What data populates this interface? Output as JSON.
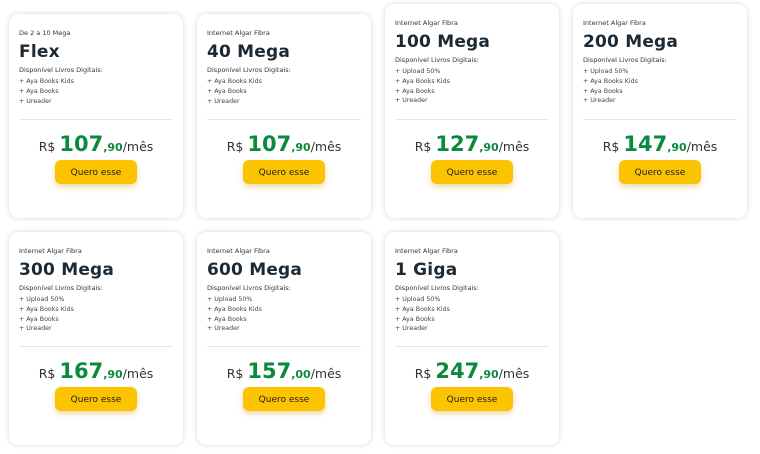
{
  "colors": {
    "accent_green": "#0b8a3d",
    "button_yellow": "#fcc400"
  },
  "plans": [
    {
      "subtitle": "De 2 a 10 Mega",
      "title": "Flex",
      "available_label": "Disponível Livros Digitais:",
      "items": [
        "+ Aya Books Kids",
        "+ Aya Books",
        "+ Ureader"
      ],
      "currency": "R$",
      "price_int": "107",
      "price_cents": ",90",
      "period": "/mês",
      "button": "Quero esse"
    },
    {
      "subtitle": "Internet Algar Fibra",
      "title": "40 Mega",
      "available_label": "Disponível Livros Digitais:",
      "items": [
        "+ Aya Books Kids",
        "+ Aya Books",
        "+ Ureader"
      ],
      "currency": "R$",
      "price_int": "107",
      "price_cents": ",90",
      "period": "/mês",
      "button": "Quero esse"
    },
    {
      "subtitle": "Internet Algar Fibra",
      "title": "100 Mega",
      "available_label": "Disponível Livros Digitais:",
      "items": [
        "+ Upload 50%",
        "+ Aya Books Kids",
        "+ Aya Books",
        "+ Ureader"
      ],
      "currency": "R$",
      "price_int": "127",
      "price_cents": ",90",
      "period": "/mês",
      "button": "Quero esse"
    },
    {
      "subtitle": "Internet Algar Fibra",
      "title": "200 Mega",
      "available_label": "Disponível Livros Digitais:",
      "items": [
        "+ Upload 50%",
        "+ Aya Books Kids",
        "+ Aya Books",
        "+ Ureader"
      ],
      "currency": "R$",
      "price_int": "147",
      "price_cents": ",90",
      "period": "/mês",
      "button": "Quero esse"
    },
    {
      "subtitle": "Internet Algar Fibra",
      "title": "300 Mega",
      "available_label": "Disponível Livros Digitais:",
      "items": [
        "+ Upload 50%",
        "+ Aya Books Kids",
        "+ Aya Books",
        "+ Ureader"
      ],
      "currency": "R$",
      "price_int": "167",
      "price_cents": ",90",
      "period": "/mês",
      "button": "Quero esse"
    },
    {
      "subtitle": "Internet Algar Fibra",
      "title": "600 Mega",
      "available_label": "Disponível Livros Digitais:",
      "items": [
        "+ Upload 50%",
        "+ Aya Books Kids",
        "+ Aya Books",
        "+ Ureader"
      ],
      "currency": "R$",
      "price_int": "157",
      "price_cents": ",00",
      "period": "/mês",
      "button": "Quero esse"
    },
    {
      "subtitle": "Internet Algar Fibra",
      "title": "1 Giga",
      "available_label": "Disponível Livros Digitais:",
      "items": [
        "+ Upload 50%",
        "+ Aya Books Kids",
        "+ Aya Books",
        "+ Ureader"
      ],
      "currency": "R$",
      "price_int": "247",
      "price_cents": ",90",
      "period": "/mês",
      "button": "Quero esse"
    }
  ]
}
